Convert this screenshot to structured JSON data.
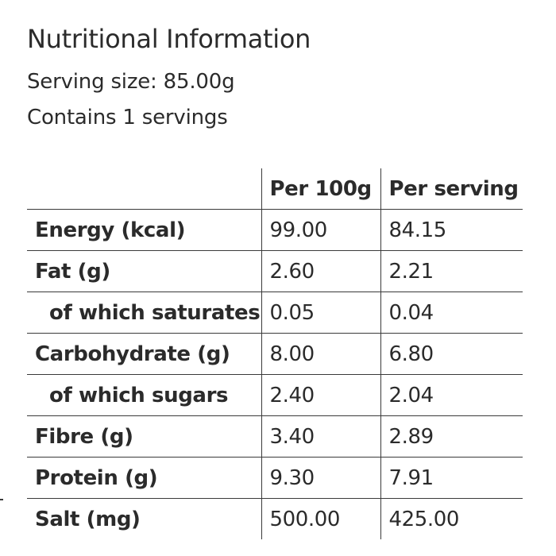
{
  "title": "Nutritional Information",
  "serving_size": "Serving size: 85.00g",
  "servings_count": "Contains 1 servings",
  "table": {
    "headers": [
      "",
      "Per 100g",
      "Per serving"
    ],
    "rows": [
      {
        "label": "Energy (kcal)",
        "per_100g": "99.00",
        "per_serving": "84.15"
      },
      {
        "label": "Fat (g)",
        "per_100g": "2.60",
        "per_serving": "2.21"
      },
      {
        "label": "of which saturates",
        "per_100g": "0.05",
        "per_serving": "0.04"
      },
      {
        "label": "Carbohydrate (g)",
        "per_100g": "8.00",
        "per_serving": "6.80"
      },
      {
        "label": "of which sugars",
        "per_100g": "2.40",
        "per_serving": "2.04"
      },
      {
        "label": "Fibre (g)",
        "per_100g": "3.40",
        "per_serving": "2.89"
      },
      {
        "label": "Protein (g)",
        "per_100g": "9.30",
        "per_serving": "7.91"
      },
      {
        "label": "Salt (mg)",
        "per_100g": "500.00",
        "per_serving": "425.00"
      }
    ]
  }
}
